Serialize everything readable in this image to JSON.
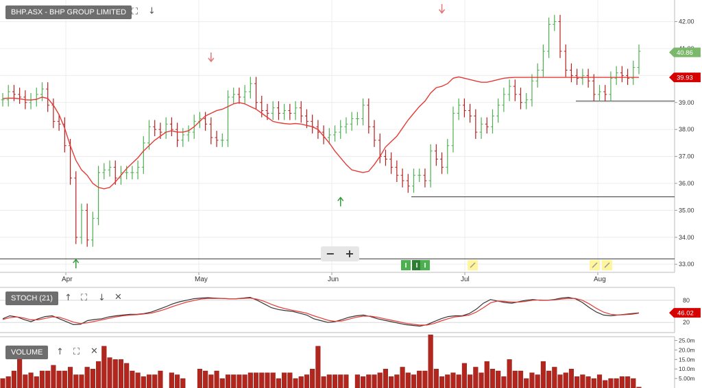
{
  "main_panel": {
    "label": "BHP.ASX - BHP GROUP LIMITED",
    "fullscreen_icon": "expand-icon",
    "down_icon": "arrow-down-icon"
  },
  "stoch_panel": {
    "label": "STOCH (21)",
    "icons": [
      "arrow-up-icon",
      "expand-icon",
      "arrow-down-icon",
      "close-icon"
    ]
  },
  "volume_panel": {
    "label": "VOLUME",
    "icons": [
      "arrow-up-icon",
      "expand-icon",
      "close-icon"
    ]
  },
  "zoom": {
    "minus": "−",
    "plus": "+"
  },
  "colors": {
    "up": "#4caf50",
    "down": "#b71c1c",
    "ma": "#e53935",
    "price_badge": "#d50000",
    "last_badge": "#7cb86b",
    "volume": "#b3261e",
    "stoch_k": "#333333",
    "stoch_d": "#e53935"
  },
  "chart_data": [
    {
      "type": "ohlc",
      "x_labels": [
        "Apr",
        "May",
        "Jun",
        "Jul",
        "Aug"
      ],
      "y_ticks": [
        "42.00",
        "41.00",
        "40.00",
        "39.00",
        "38.00",
        "37.00",
        "36.00",
        "35.00",
        "34.00",
        "33.00"
      ],
      "ylim": [
        32.7,
        42.7
      ],
      "last_price": "40.86",
      "ma_value": "39.93",
      "close": [
        39.1,
        39.4,
        39.3,
        39.2,
        39.0,
        39.1,
        39.3,
        39.5,
        38.9,
        38.3,
        38.2,
        37.4,
        36.2,
        34.0,
        35.0,
        33.9,
        34.7,
        36.4,
        36.5,
        36.6,
        36.2,
        36.4,
        36.4,
        36.4,
        36.6,
        37.5,
        38.1,
        38.0,
        37.9,
        38.2,
        38.0,
        37.6,
        37.8,
        37.9,
        38.3,
        38.4,
        38.2,
        37.7,
        37.6,
        37.6,
        39.2,
        39.3,
        39.2,
        39.4,
        39.7,
        39.0,
        38.7,
        38.6,
        38.8,
        38.6,
        38.7,
        38.6,
        38.8,
        38.5,
        38.3,
        38.1,
        37.9,
        37.7,
        37.8,
        37.9,
        38.1,
        38.2,
        38.4,
        38.4,
        38.9,
        38.1,
        37.6,
        37.0,
        36.9,
        36.6,
        36.3,
        36.1,
        35.9,
        36.3,
        36.3,
        36.1,
        37.2,
        36.9,
        36.6,
        37.4,
        38.6,
        38.9,
        38.7,
        38.5,
        37.9,
        38.2,
        38.1,
        38.5,
        38.9,
        39.3,
        39.6,
        39.3,
        39.0,
        39.1,
        39.8,
        40.2,
        40.9,
        41.9,
        42.0,
        40.9,
        40.2,
        40.0,
        39.9,
        40.0,
        39.8,
        39.3,
        39.4,
        39.3,
        39.9,
        40.1,
        40.0,
        39.9,
        40.3,
        40.9
      ],
      "ma": [
        39.15,
        39.16,
        39.16,
        39.14,
        39.1,
        39.09,
        39.12,
        39.2,
        39.15,
        38.9,
        38.55,
        38.05,
        37.4,
        36.85,
        36.5,
        36.3,
        36.0,
        35.85,
        35.8,
        35.85,
        36.05,
        36.3,
        36.55,
        36.75,
        36.95,
        37.2,
        37.4,
        37.6,
        37.75,
        37.9,
        37.95,
        37.9,
        37.9,
        37.95,
        38.1,
        38.3,
        38.5,
        38.6,
        38.7,
        38.75,
        38.85,
        38.95,
        39.0,
        38.95,
        38.85,
        38.75,
        38.6,
        38.45,
        38.3,
        38.25,
        38.22,
        38.2,
        38.22,
        38.2,
        38.15,
        38.1,
        38.0,
        37.75,
        37.5,
        37.2,
        36.95,
        36.7,
        36.5,
        36.45,
        36.4,
        36.45,
        36.7,
        37.0,
        37.35,
        37.55,
        37.75,
        38.05,
        38.35,
        38.6,
        38.85,
        39.05,
        39.35,
        39.55,
        39.6,
        39.7,
        39.9,
        39.95,
        39.9,
        39.85,
        39.8,
        39.75,
        39.75,
        39.8,
        39.85,
        39.9,
        39.92,
        39.93,
        39.93,
        39.93,
        39.93,
        39.93,
        39.93,
        39.93,
        39.93,
        39.93,
        39.93,
        39.93,
        39.93,
        39.93,
        39.93,
        39.93,
        39.93,
        39.93,
        39.93,
        39.93,
        39.93,
        39.93,
        39.93,
        39.93
      ],
      "horizontal_lines": [
        33.2,
        35.5,
        39.05
      ]
    },
    {
      "type": "line",
      "title": "STOCH (21)",
      "y_ticks": [
        "80",
        "20"
      ],
      "ylim": [
        0,
        100
      ],
      "last_value": "46.02",
      "k": [
        30,
        38,
        35,
        28,
        22,
        30,
        36,
        38,
        30,
        22,
        14,
        15,
        25,
        28,
        30,
        35,
        38,
        40,
        42,
        42,
        44,
        48,
        55,
        62,
        70,
        76,
        80,
        84,
        86,
        87,
        86,
        85,
        84,
        84,
        86,
        88,
        80,
        70,
        60,
        55,
        52,
        50,
        45,
        40,
        30,
        25,
        20,
        22,
        28,
        34,
        38,
        40,
        36,
        30,
        26,
        22,
        18,
        14,
        12,
        10,
        14,
        22,
        30,
        36,
        38,
        38,
        44,
        56,
        72,
        82,
        78,
        74,
        72,
        76,
        80,
        82,
        80,
        80,
        82,
        86,
        88,
        84,
        74,
        60,
        48,
        40,
        38,
        40,
        42,
        44,
        46
      ],
      "d": [
        28,
        33,
        35,
        32,
        27,
        27,
        31,
        35,
        34,
        28,
        21,
        17,
        19,
        23,
        27,
        31,
        35,
        38,
        40,
        41,
        43,
        45,
        50,
        56,
        63,
        69,
        75,
        79,
        83,
        85,
        85,
        85,
        84,
        84,
        85,
        86,
        83,
        77,
        69,
        62,
        57,
        53,
        49,
        45,
        38,
        32,
        26,
        23,
        24,
        29,
        34,
        37,
        37,
        34,
        30,
        26,
        22,
        18,
        15,
        13,
        13,
        17,
        24,
        30,
        35,
        37,
        40,
        48,
        60,
        73,
        78,
        77,
        75,
        75,
        77,
        80,
        81,
        80,
        81,
        83,
        85,
        85,
        80,
        70,
        58,
        48,
        42,
        40,
        41,
        42,
        45
      ],
      "series": [
        {
          "name": "%K"
        },
        {
          "name": "%D"
        }
      ]
    },
    {
      "type": "bar",
      "title": "VOLUME",
      "y_ticks": [
        "25.0m",
        "20.0m",
        "15.0m",
        "10.0m",
        "5.00m"
      ],
      "ylim": [
        0,
        27
      ],
      "values": [
        5,
        6,
        9,
        22,
        7,
        8,
        6,
        9,
        9,
        12,
        9,
        9,
        11,
        7,
        7,
        11,
        10,
        14,
        22,
        16,
        15,
        15,
        13,
        9,
        8,
        6,
        7,
        7,
        9,
        0,
        8,
        7,
        5,
        0,
        0,
        10,
        9,
        7,
        9,
        5,
        7,
        7,
        7,
        7,
        8,
        8,
        8,
        8,
        8,
        5,
        8,
        8,
        5,
        6,
        7,
        10,
        22,
        6,
        7,
        7,
        7,
        7,
        0,
        7,
        6,
        7,
        7,
        8,
        10,
        6,
        7,
        11,
        8,
        7,
        9,
        9,
        28,
        10,
        6,
        7,
        8,
        7,
        13,
        7,
        11,
        8,
        14,
        10,
        9,
        6,
        15,
        9,
        9,
        5,
        8,
        7,
        14,
        9,
        11,
        7,
        8,
        10,
        6,
        7,
        6,
        5,
        7,
        4,
        5,
        5,
        6,
        6,
        5,
        0.5
      ]
    }
  ]
}
